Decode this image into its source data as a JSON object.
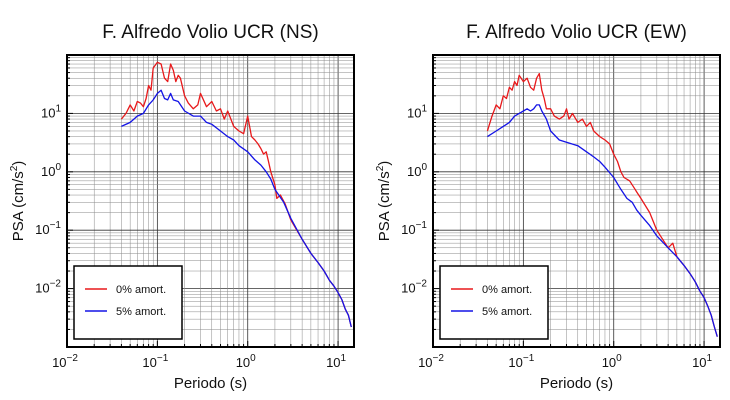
{
  "chart_data": [
    {
      "type": "line",
      "title": "F. Alfredo Volio UCR (NS)",
      "xlabel": "Periodo (s)",
      "ylabel_main": "PSA (cm/s",
      "ylabel_sup": "2",
      "ylabel_close": ")",
      "xscale": "log",
      "yscale": "log",
      "xlim": [
        0.01,
        15
      ],
      "ylim": [
        0.001,
        100
      ],
      "x_ticks": [
        {
          "base": "10",
          "exp": "−2"
        },
        {
          "base": "10",
          "exp": "−1"
        },
        {
          "base": "10",
          "exp": "0"
        },
        {
          "base": "10",
          "exp": "1"
        }
      ],
      "y_ticks": [
        {
          "base": "10",
          "exp": "−2"
        },
        {
          "base": "10",
          "exp": "−1"
        },
        {
          "base": "10",
          "exp": "0"
        },
        {
          "base": "10",
          "exp": "1"
        }
      ],
      "grid": true,
      "legend_position": "bottom-left",
      "series": [
        {
          "name": "0% amort.",
          "color": "#e8191b",
          "points": [
            [
              0.04,
              8
            ],
            [
              0.045,
              10
            ],
            [
              0.05,
              14
            ],
            [
              0.055,
              11
            ],
            [
              0.06,
              16
            ],
            [
              0.065,
              15
            ],
            [
              0.07,
              13
            ],
            [
              0.075,
              18
            ],
            [
              0.08,
              30
            ],
            [
              0.085,
              25
            ],
            [
              0.09,
              60
            ],
            [
              0.1,
              75
            ],
            [
              0.11,
              70
            ],
            [
              0.12,
              40
            ],
            [
              0.13,
              35
            ],
            [
              0.14,
              70
            ],
            [
              0.15,
              55
            ],
            [
              0.16,
              35
            ],
            [
              0.17,
              45
            ],
            [
              0.18,
              40
            ],
            [
              0.2,
              20
            ],
            [
              0.22,
              15
            ],
            [
              0.25,
              12
            ],
            [
              0.28,
              14
            ],
            [
              0.3,
              22
            ],
            [
              0.35,
              13
            ],
            [
              0.4,
              16
            ],
            [
              0.45,
              11
            ],
            [
              0.5,
              12
            ],
            [
              0.55,
              8
            ],
            [
              0.6,
              11
            ],
            [
              0.7,
              6
            ],
            [
              0.8,
              5
            ],
            [
              0.9,
              4.5
            ],
            [
              1.0,
              9
            ],
            [
              1.1,
              4
            ],
            [
              1.2,
              3.5
            ],
            [
              1.3,
              3
            ],
            [
              1.4,
              2.5
            ],
            [
              1.5,
              2
            ],
            [
              1.6,
              2.2
            ],
            [
              1.7,
              1.5
            ],
            [
              1.8,
              1
            ],
            [
              2.0,
              0.6
            ],
            [
              2.1,
              0.35
            ],
            [
              2.3,
              0.4
            ],
            [
              2.6,
              0.28
            ],
            [
              3.0,
              0.15
            ],
            [
              4.0,
              0.07
            ],
            [
              5.0,
              0.04
            ],
            [
              6.0,
              0.028
            ],
            [
              7.0,
              0.02
            ],
            [
              8.0,
              0.014
            ],
            [
              9.0,
              0.011
            ],
            [
              10.0,
              0.0085
            ],
            [
              11.0,
              0.0065
            ],
            [
              12.0,
              0.0045
            ],
            [
              13.0,
              0.0035
            ],
            [
              14.0,
              0.0022
            ]
          ]
        },
        {
          "name": "5% amort.",
          "color": "#1414e6",
          "points": [
            [
              0.04,
              6
            ],
            [
              0.05,
              7
            ],
            [
              0.06,
              9
            ],
            [
              0.07,
              10
            ],
            [
              0.08,
              14
            ],
            [
              0.09,
              17
            ],
            [
              0.1,
              22
            ],
            [
              0.11,
              25
            ],
            [
              0.12,
              18
            ],
            [
              0.13,
              17
            ],
            [
              0.14,
              22
            ],
            [
              0.15,
              17
            ],
            [
              0.17,
              16
            ],
            [
              0.2,
              11
            ],
            [
              0.25,
              9
            ],
            [
              0.3,
              9
            ],
            [
              0.35,
              7
            ],
            [
              0.4,
              6.5
            ],
            [
              0.5,
              5
            ],
            [
              0.6,
              4
            ],
            [
              0.7,
              3.5
            ],
            [
              0.8,
              2.8
            ],
            [
              1.0,
              2.2
            ],
            [
              1.2,
              1.6
            ],
            [
              1.4,
              1.3
            ],
            [
              1.6,
              1.0
            ],
            [
              1.8,
              0.75
            ],
            [
              2.0,
              0.5
            ],
            [
              2.5,
              0.3
            ],
            [
              3.0,
              0.16
            ],
            [
              4.0,
              0.07
            ],
            [
              5.0,
              0.04
            ],
            [
              6.0,
              0.028
            ],
            [
              7.0,
              0.02
            ],
            [
              8.0,
              0.014
            ],
            [
              9.0,
              0.011
            ],
            [
              10.0,
              0.0085
            ],
            [
              11.0,
              0.0065
            ],
            [
              12.0,
              0.0045
            ],
            [
              13.0,
              0.0035
            ],
            [
              14.0,
              0.0022
            ]
          ]
        }
      ]
    },
    {
      "type": "line",
      "title": "F. Alfredo Volio UCR (EW)",
      "xlabel": "Periodo (s)",
      "ylabel_main": "PSA (cm/s",
      "ylabel_sup": "2",
      "ylabel_close": ")",
      "xscale": "log",
      "yscale": "log",
      "xlim": [
        0.01,
        15
      ],
      "ylim": [
        0.001,
        100
      ],
      "x_ticks": [
        {
          "base": "10",
          "exp": "−2"
        },
        {
          "base": "10",
          "exp": "−1"
        },
        {
          "base": "10",
          "exp": "0"
        },
        {
          "base": "10",
          "exp": "1"
        }
      ],
      "y_ticks": [
        {
          "base": "10",
          "exp": "−2"
        },
        {
          "base": "10",
          "exp": "−1"
        },
        {
          "base": "10",
          "exp": "0"
        },
        {
          "base": "10",
          "exp": "1"
        }
      ],
      "grid": true,
      "legend_position": "bottom-left",
      "series": [
        {
          "name": "0% amort.",
          "color": "#e8191b",
          "points": [
            [
              0.04,
              5
            ],
            [
              0.045,
              9
            ],
            [
              0.05,
              14
            ],
            [
              0.055,
              12
            ],
            [
              0.06,
              20
            ],
            [
              0.065,
              18
            ],
            [
              0.07,
              28
            ],
            [
              0.075,
              25
            ],
            [
              0.08,
              35
            ],
            [
              0.085,
              30
            ],
            [
              0.09,
              45
            ],
            [
              0.1,
              35
            ],
            [
              0.11,
              40
            ],
            [
              0.12,
              28
            ],
            [
              0.13,
              25
            ],
            [
              0.14,
              40
            ],
            [
              0.15,
              48
            ],
            [
              0.16,
              25
            ],
            [
              0.17,
              18
            ],
            [
              0.18,
              12
            ],
            [
              0.2,
              12
            ],
            [
              0.22,
              9
            ],
            [
              0.25,
              8
            ],
            [
              0.28,
              9
            ],
            [
              0.3,
              12
            ],
            [
              0.32,
              8
            ],
            [
              0.35,
              10
            ],
            [
              0.4,
              7
            ],
            [
              0.45,
              8
            ],
            [
              0.5,
              6
            ],
            [
              0.55,
              7
            ],
            [
              0.6,
              5
            ],
            [
              0.7,
              4
            ],
            [
              0.8,
              3.5
            ],
            [
              0.9,
              3
            ],
            [
              1.0,
              2
            ],
            [
              1.1,
              1.5
            ],
            [
              1.2,
              1
            ],
            [
              1.3,
              0.8
            ],
            [
              1.5,
              0.7
            ],
            [
              1.6,
              0.6
            ],
            [
              1.8,
              0.45
            ],
            [
              2.0,
              0.35
            ],
            [
              2.5,
              0.2
            ],
            [
              3.0,
              0.1
            ],
            [
              4.0,
              0.05
            ],
            [
              4.5,
              0.06
            ],
            [
              5.0,
              0.035
            ],
            [
              6.0,
              0.025
            ],
            [
              7.0,
              0.018
            ],
            [
              8.0,
              0.013
            ],
            [
              9.0,
              0.009
            ],
            [
              10.0,
              0.007
            ],
            [
              11.0,
              0.005
            ],
            [
              12.0,
              0.0035
            ],
            [
              13.0,
              0.0022
            ],
            [
              14.0,
              0.0015
            ]
          ]
        },
        {
          "name": "5% amort.",
          "color": "#1414e6",
          "points": [
            [
              0.04,
              4
            ],
            [
              0.05,
              5
            ],
            [
              0.06,
              6
            ],
            [
              0.07,
              7
            ],
            [
              0.08,
              9
            ],
            [
              0.09,
              10
            ],
            [
              0.1,
              11
            ],
            [
              0.11,
              12
            ],
            [
              0.12,
              11
            ],
            [
              0.13,
              12
            ],
            [
              0.14,
              14
            ],
            [
              0.15,
              14
            ],
            [
              0.16,
              11
            ],
            [
              0.18,
              8
            ],
            [
              0.2,
              5
            ],
            [
              0.25,
              3.5
            ],
            [
              0.3,
              3.2
            ],
            [
              0.4,
              2.8
            ],
            [
              0.5,
              2.2
            ],
            [
              0.6,
              1.8
            ],
            [
              0.7,
              1.5
            ],
            [
              0.8,
              1.2
            ],
            [
              1.0,
              0.8
            ],
            [
              1.2,
              0.5
            ],
            [
              1.4,
              0.35
            ],
            [
              1.6,
              0.3
            ],
            [
              1.8,
              0.22
            ],
            [
              2.0,
              0.18
            ],
            [
              2.5,
              0.12
            ],
            [
              3.0,
              0.08
            ],
            [
              4.0,
              0.05
            ],
            [
              5.0,
              0.035
            ],
            [
              6.0,
              0.025
            ],
            [
              7.0,
              0.018
            ],
            [
              8.0,
              0.013
            ],
            [
              9.0,
              0.009
            ],
            [
              10.0,
              0.007
            ],
            [
              11.0,
              0.005
            ],
            [
              12.0,
              0.0035
            ],
            [
              13.0,
              0.0022
            ],
            [
              14.0,
              0.0015
            ]
          ]
        }
      ]
    }
  ]
}
